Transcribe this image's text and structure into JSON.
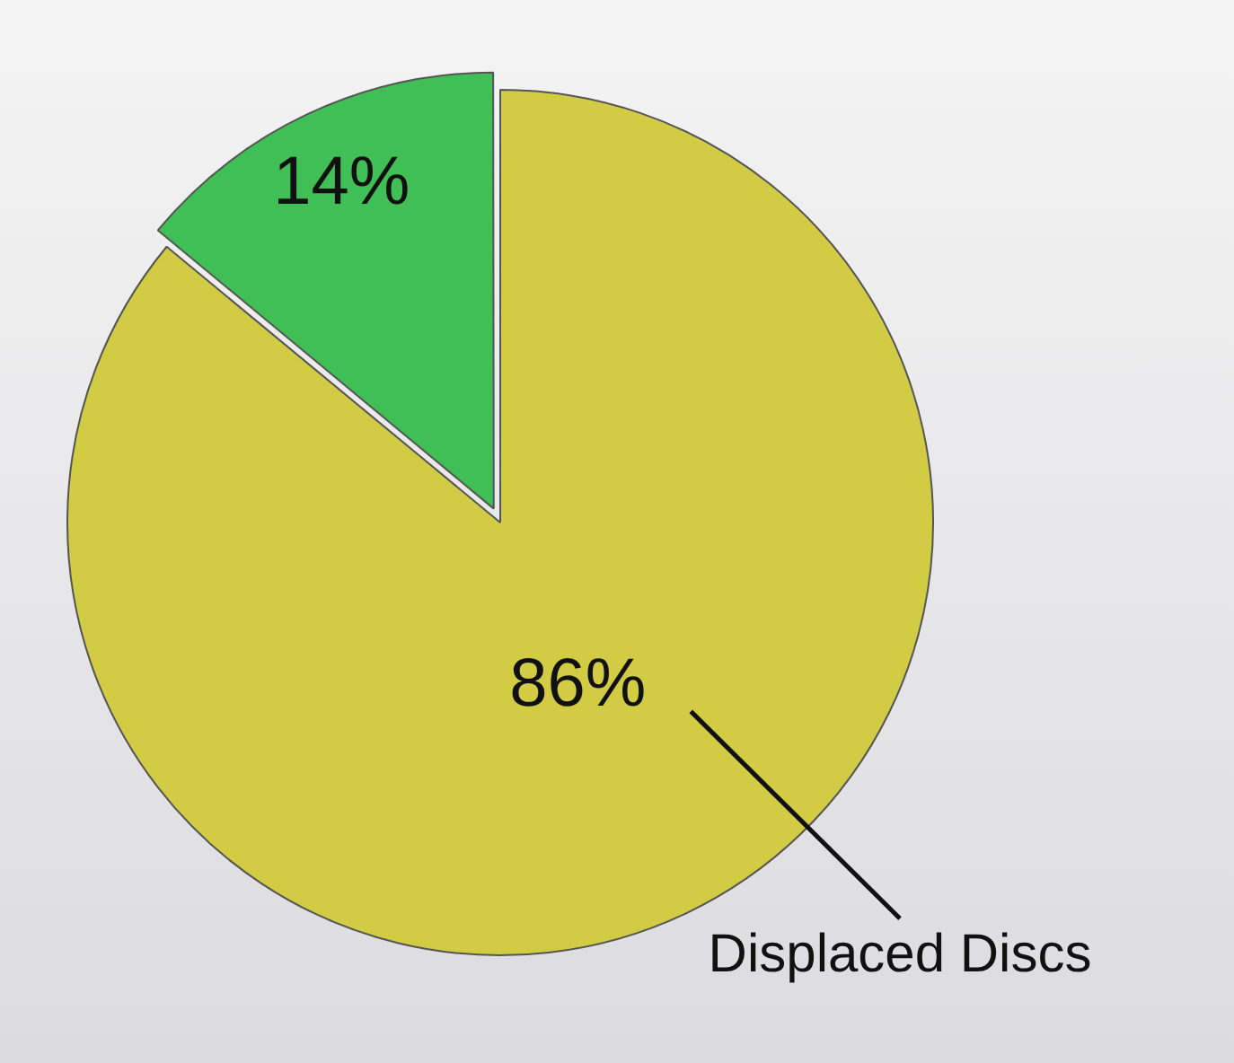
{
  "chart_data": {
    "type": "pie",
    "categories": [
      "Displaced Discs",
      null
    ],
    "values": [
      86,
      14
    ],
    "colors": [
      "#d2cc45",
      "#3fbf55"
    ],
    "value_labels": [
      "86%",
      "14%"
    ],
    "legend": false
  }
}
